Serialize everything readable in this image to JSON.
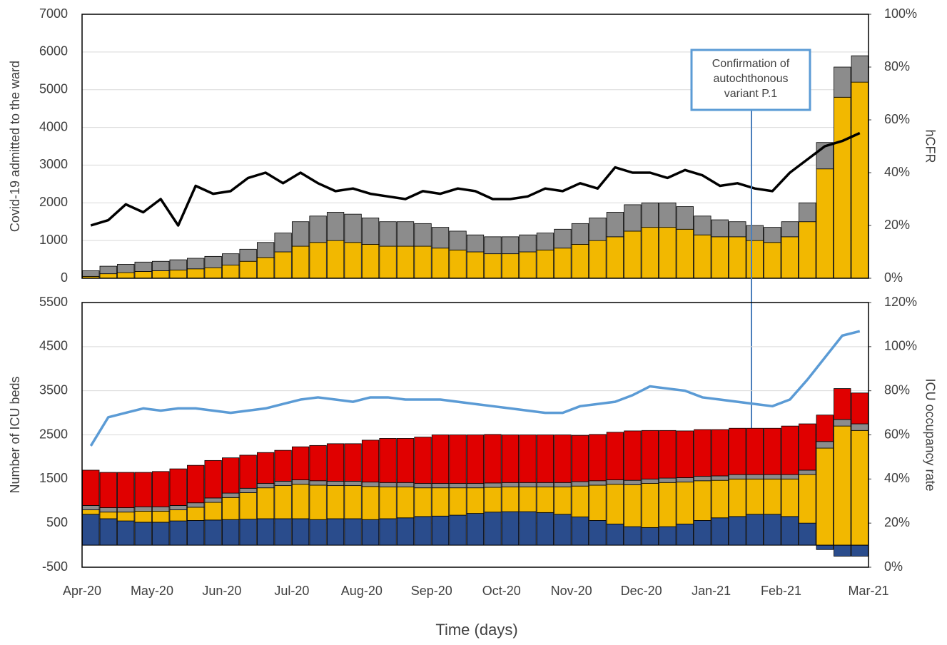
{
  "chart_data": [
    {
      "type": "bar",
      "ylabel": "Covid-19 admitted to the ward",
      "y2label": "hCFR",
      "ylim": [
        0,
        7000
      ],
      "yticks": [
        0,
        1000,
        2000,
        3000,
        4000,
        5000,
        6000,
        7000
      ],
      "y2lim": [
        0,
        100
      ],
      "y2ticks": [
        {
          "value": 0,
          "label": "0%"
        },
        {
          "value": 20,
          "label": "20%"
        },
        {
          "value": 40,
          "label": "40%"
        },
        {
          "value": 60,
          "label": "60%"
        },
        {
          "value": 80,
          "label": "80%"
        },
        {
          "value": 100,
          "label": "100%"
        }
      ],
      "grid": true,
      "annotation": [
        "Confirmation of",
        "autochthonous",
        "variant P.1"
      ],
      "series": [
        {
          "color": "#f2b800",
          "values": [
            50,
            120,
            150,
            180,
            200,
            220,
            250,
            280,
            350,
            450,
            550,
            700,
            850,
            950,
            1000,
            950,
            900,
            850,
            850,
            850,
            800,
            750,
            700,
            650,
            650,
            700,
            750,
            800,
            900,
            1000,
            1100,
            1250,
            1350,
            1350,
            1300,
            1150,
            1100,
            1100,
            1000,
            950,
            1100,
            1500,
            2900,
            4800,
            5200
          ]
        },
        {
          "color": "#8c8c8c",
          "values": [
            150,
            200,
            220,
            250,
            250,
            270,
            280,
            300,
            300,
            320,
            400,
            500,
            650,
            700,
            750,
            750,
            700,
            650,
            650,
            600,
            550,
            500,
            450,
            450,
            450,
            450,
            450,
            500,
            550,
            600,
            650,
            700,
            650,
            650,
            600,
            500,
            450,
            400,
            400,
            400,
            400,
            500,
            700,
            800,
            700
          ]
        },
        {
          "type": "line",
          "axis": "y2",
          "color": "#000000",
          "values": [
            20,
            22,
            28,
            25,
            30,
            20,
            35,
            32,
            33,
            38,
            40,
            36,
            40,
            36,
            33,
            34,
            32,
            31,
            30,
            33,
            32,
            34,
            33,
            30,
            30,
            31,
            34,
            33,
            36,
            34,
            42,
            40,
            40,
            38,
            41,
            39,
            35,
            36,
            34,
            33,
            40,
            45,
            50,
            52,
            55
          ]
        }
      ]
    },
    {
      "type": "bar",
      "ylabel": "Number of ICU beds",
      "y2label": "ICU occupancy rate",
      "xlabel": "Time (days)",
      "categories": [
        "Apr-20",
        null,
        null,
        null,
        "May-20",
        null,
        null,
        null,
        "Jun-20",
        null,
        null,
        null,
        "Jul-20",
        null,
        null,
        null,
        "Aug-20",
        null,
        null,
        null,
        "Sep-20",
        null,
        null,
        null,
        "Oct-20",
        null,
        null,
        null,
        "Nov-20",
        null,
        null,
        null,
        "Dec-20",
        null,
        null,
        null,
        "Jan-21",
        null,
        null,
        null,
        "Feb-21",
        null,
        null,
        null,
        "Mar-21"
      ],
      "ylim": [
        -500,
        5500
      ],
      "yticks": [
        -500,
        500,
        1500,
        2500,
        3500,
        4500,
        5500
      ],
      "y2lim": [
        0,
        120
      ],
      "y2ticks": [
        {
          "value": 0,
          "label": "0%"
        },
        {
          "value": 20,
          "label": "20%"
        },
        {
          "value": 40,
          "label": "40%"
        },
        {
          "value": 60,
          "label": "60%"
        },
        {
          "value": 80,
          "label": "80%"
        },
        {
          "value": 100,
          "label": "100%"
        },
        {
          "value": 120,
          "label": "120%"
        }
      ],
      "grid": true,
      "series": [
        {
          "color": "#2a4c8c",
          "values": [
            700,
            600,
            550,
            520,
            520,
            550,
            560,
            570,
            580,
            590,
            600,
            600,
            600,
            580,
            600,
            600,
            580,
            600,
            620,
            650,
            660,
            680,
            720,
            750,
            760,
            760,
            740,
            700,
            640,
            560,
            480,
            420,
            400,
            420,
            480,
            560,
            620,
            650,
            700,
            700,
            650,
            500,
            -100,
            -250,
            -250
          ]
        },
        {
          "color": "#f2b800",
          "values": [
            100,
            150,
            200,
            250,
            250,
            250,
            300,
            400,
            500,
            600,
            700,
            750,
            780,
            780,
            750,
            750,
            750,
            720,
            700,
            650,
            640,
            620,
            580,
            560,
            560,
            560,
            580,
            620,
            700,
            800,
            900,
            950,
            1000,
            1000,
            950,
            900,
            850,
            850,
            800,
            800,
            850,
            1100,
            2200,
            2700,
            2600
          ]
        },
        {
          "color": "#8c8c8c",
          "values": [
            100,
            100,
            100,
            100,
            100,
            100,
            100,
            100,
            100,
            100,
            100,
            100,
            100,
            100,
            100,
            100,
            100,
            100,
            100,
            100,
            100,
            100,
            100,
            100,
            100,
            100,
            100,
            100,
            100,
            100,
            100,
            100,
            100,
            100,
            100,
            100,
            100,
            100,
            100,
            100,
            100,
            100,
            150,
            150,
            150
          ]
        },
        {
          "color": "#e00000",
          "values": [
            800,
            800,
            800,
            780,
            800,
            830,
            850,
            850,
            800,
            750,
            700,
            700,
            750,
            800,
            850,
            850,
            950,
            1000,
            1000,
            1050,
            1100,
            1100,
            1100,
            1100,
            1080,
            1080,
            1080,
            1080,
            1050,
            1050,
            1080,
            1120,
            1100,
            1080,
            1060,
            1060,
            1050,
            1050,
            1050,
            1050,
            1100,
            1050,
            600,
            700,
            700
          ]
        },
        {
          "type": "line",
          "axis": "y2",
          "color": "#5b9bd5",
          "values": [
            55,
            68,
            70,
            72,
            71,
            72,
            72,
            71,
            70,
            71,
            72,
            74,
            76,
            77,
            76,
            75,
            77,
            77,
            76,
            76,
            76,
            75,
            74,
            73,
            72,
            71,
            70,
            70,
            73,
            74,
            75,
            78,
            82,
            81,
            80,
            77,
            76,
            75,
            74,
            73,
            76,
            85,
            95,
            105,
            107
          ]
        }
      ]
    }
  ]
}
